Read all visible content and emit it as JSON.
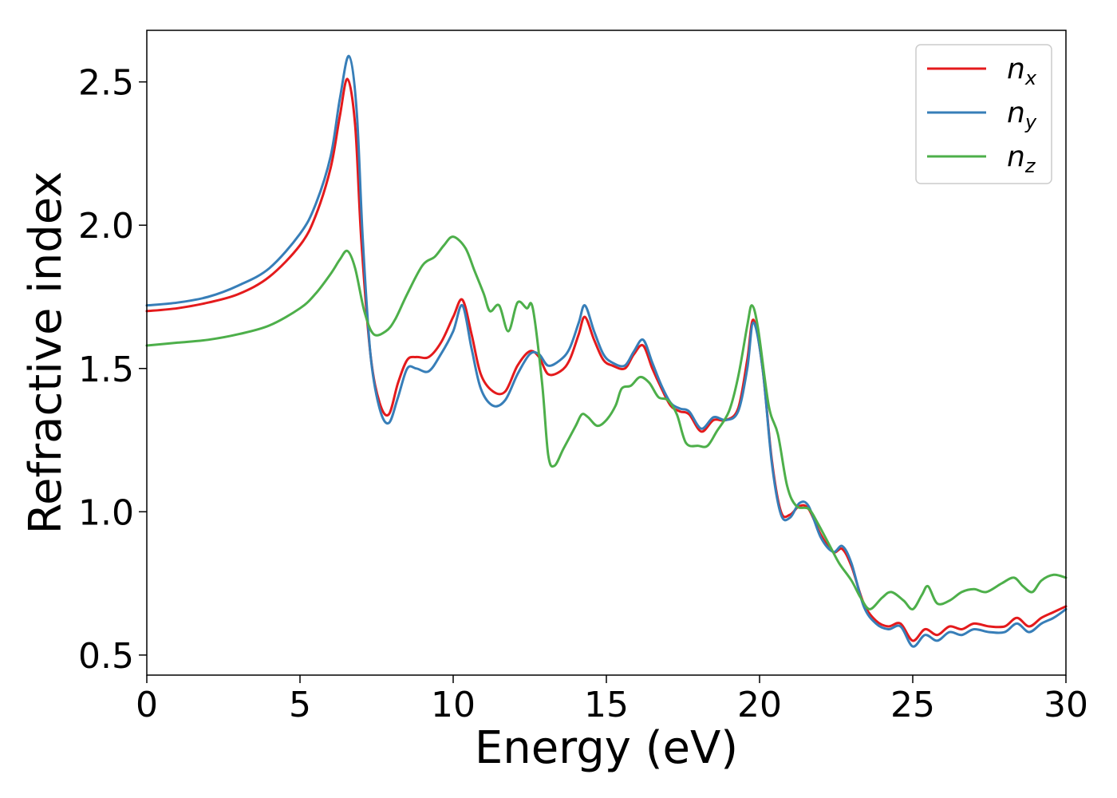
{
  "chart_data": {
    "type": "line",
    "title": "",
    "xlabel": "Energy (eV)",
    "ylabel": "Refractive index",
    "xlim": [
      0,
      30
    ],
    "ylim": [
      0.43,
      2.68
    ],
    "xticks": [
      0,
      5,
      10,
      15,
      20,
      25,
      30
    ],
    "xtick_labels": [
      "0",
      "5",
      "10",
      "15",
      "20",
      "25",
      "30"
    ],
    "yticks": [
      0.5,
      1.0,
      1.5,
      2.0,
      2.5
    ],
    "ytick_labels": [
      "0.5",
      "1.0",
      "1.5",
      "2.0",
      "2.5"
    ],
    "grid": false,
    "legend_position": "top-right",
    "series": [
      {
        "name": "n_x",
        "label_base": "n",
        "label_sub": "x",
        "color": "#e41a1c",
        "points": [
          [
            0,
            1.7
          ],
          [
            1,
            1.71
          ],
          [
            2,
            1.73
          ],
          [
            3,
            1.76
          ],
          [
            4,
            1.82
          ],
          [
            5,
            1.93
          ],
          [
            5.5,
            2.03
          ],
          [
            6.0,
            2.2
          ],
          [
            6.3,
            2.38
          ],
          [
            6.55,
            2.51
          ],
          [
            6.8,
            2.35
          ],
          [
            7.0,
            1.95
          ],
          [
            7.3,
            1.55
          ],
          [
            7.6,
            1.38
          ],
          [
            7.9,
            1.34
          ],
          [
            8.2,
            1.45
          ],
          [
            8.5,
            1.53
          ],
          [
            8.8,
            1.54
          ],
          [
            9.2,
            1.54
          ],
          [
            9.6,
            1.59
          ],
          [
            10.0,
            1.68
          ],
          [
            10.3,
            1.74
          ],
          [
            10.6,
            1.62
          ],
          [
            10.9,
            1.48
          ],
          [
            11.3,
            1.42
          ],
          [
            11.7,
            1.42
          ],
          [
            12.1,
            1.51
          ],
          [
            12.5,
            1.56
          ],
          [
            12.8,
            1.54
          ],
          [
            13.1,
            1.48
          ],
          [
            13.5,
            1.49
          ],
          [
            13.8,
            1.53
          ],
          [
            14.1,
            1.62
          ],
          [
            14.3,
            1.68
          ],
          [
            14.6,
            1.6
          ],
          [
            14.9,
            1.53
          ],
          [
            15.2,
            1.51
          ],
          [
            15.6,
            1.5
          ],
          [
            15.9,
            1.55
          ],
          [
            16.2,
            1.58
          ],
          [
            16.5,
            1.5
          ],
          [
            16.8,
            1.43
          ],
          [
            17.1,
            1.37
          ],
          [
            17.4,
            1.35
          ],
          [
            17.7,
            1.34
          ],
          [
            18.1,
            1.28
          ],
          [
            18.5,
            1.32
          ],
          [
            18.9,
            1.32
          ],
          [
            19.3,
            1.36
          ],
          [
            19.6,
            1.53
          ],
          [
            19.8,
            1.67
          ],
          [
            20.1,
            1.5
          ],
          [
            20.4,
            1.18
          ],
          [
            20.7,
            1.0
          ],
          [
            21.0,
            0.99
          ],
          [
            21.3,
            1.02
          ],
          [
            21.6,
            1.01
          ],
          [
            22.0,
            0.92
          ],
          [
            22.4,
            0.86
          ],
          [
            22.7,
            0.87
          ],
          [
            23.0,
            0.81
          ],
          [
            23.4,
            0.68
          ],
          [
            23.8,
            0.62
          ],
          [
            24.2,
            0.6
          ],
          [
            24.6,
            0.61
          ],
          [
            25.0,
            0.55
          ],
          [
            25.4,
            0.59
          ],
          [
            25.8,
            0.57
          ],
          [
            26.2,
            0.6
          ],
          [
            26.6,
            0.59
          ],
          [
            27.0,
            0.61
          ],
          [
            27.5,
            0.6
          ],
          [
            28.0,
            0.6
          ],
          [
            28.4,
            0.63
          ],
          [
            28.8,
            0.6
          ],
          [
            29.2,
            0.63
          ],
          [
            29.6,
            0.65
          ],
          [
            30,
            0.67
          ]
        ]
      },
      {
        "name": "n_y",
        "label_base": "n",
        "label_sub": "y",
        "color": "#377eb8",
        "points": [
          [
            0,
            1.72
          ],
          [
            1,
            1.73
          ],
          [
            2,
            1.75
          ],
          [
            3,
            1.79
          ],
          [
            4,
            1.85
          ],
          [
            5,
            1.97
          ],
          [
            5.5,
            2.07
          ],
          [
            6.0,
            2.24
          ],
          [
            6.3,
            2.44
          ],
          [
            6.6,
            2.59
          ],
          [
            6.85,
            2.4
          ],
          [
            7.05,
            1.95
          ],
          [
            7.3,
            1.55
          ],
          [
            7.6,
            1.36
          ],
          [
            7.9,
            1.31
          ],
          [
            8.2,
            1.4
          ],
          [
            8.5,
            1.5
          ],
          [
            8.8,
            1.5
          ],
          [
            9.2,
            1.49
          ],
          [
            9.6,
            1.55
          ],
          [
            10.0,
            1.63
          ],
          [
            10.3,
            1.72
          ],
          [
            10.6,
            1.57
          ],
          [
            10.9,
            1.43
          ],
          [
            11.3,
            1.37
          ],
          [
            11.7,
            1.39
          ],
          [
            12.1,
            1.48
          ],
          [
            12.5,
            1.55
          ],
          [
            12.8,
            1.55
          ],
          [
            13.1,
            1.51
          ],
          [
            13.5,
            1.53
          ],
          [
            13.8,
            1.57
          ],
          [
            14.1,
            1.66
          ],
          [
            14.3,
            1.72
          ],
          [
            14.6,
            1.63
          ],
          [
            14.9,
            1.55
          ],
          [
            15.2,
            1.52
          ],
          [
            15.6,
            1.51
          ],
          [
            15.9,
            1.56
          ],
          [
            16.2,
            1.6
          ],
          [
            16.5,
            1.52
          ],
          [
            16.8,
            1.44
          ],
          [
            17.1,
            1.38
          ],
          [
            17.4,
            1.36
          ],
          [
            17.7,
            1.35
          ],
          [
            18.1,
            1.29
          ],
          [
            18.5,
            1.33
          ],
          [
            18.9,
            1.32
          ],
          [
            19.3,
            1.35
          ],
          [
            19.6,
            1.5
          ],
          [
            19.8,
            1.66
          ],
          [
            20.1,
            1.5
          ],
          [
            20.4,
            1.17
          ],
          [
            20.7,
            0.99
          ],
          [
            21.0,
            0.98
          ],
          [
            21.3,
            1.03
          ],
          [
            21.6,
            1.02
          ],
          [
            22.0,
            0.91
          ],
          [
            22.4,
            0.86
          ],
          [
            22.7,
            0.88
          ],
          [
            23.0,
            0.82
          ],
          [
            23.4,
            0.67
          ],
          [
            23.8,
            0.61
          ],
          [
            24.2,
            0.59
          ],
          [
            24.6,
            0.6
          ],
          [
            25.0,
            0.53
          ],
          [
            25.4,
            0.57
          ],
          [
            25.8,
            0.55
          ],
          [
            26.2,
            0.58
          ],
          [
            26.6,
            0.57
          ],
          [
            27.0,
            0.59
          ],
          [
            27.5,
            0.58
          ],
          [
            28.0,
            0.58
          ],
          [
            28.4,
            0.61
          ],
          [
            28.8,
            0.58
          ],
          [
            29.2,
            0.61
          ],
          [
            29.6,
            0.63
          ],
          [
            30,
            0.66
          ]
        ]
      },
      {
        "name": "n_z",
        "label_base": "n",
        "label_sub": "z",
        "color": "#4daf4a",
        "points": [
          [
            0,
            1.58
          ],
          [
            1,
            1.59
          ],
          [
            2,
            1.6
          ],
          [
            3,
            1.62
          ],
          [
            4,
            1.65
          ],
          [
            5,
            1.71
          ],
          [
            5.5,
            1.76
          ],
          [
            6.0,
            1.83
          ],
          [
            6.3,
            1.88
          ],
          [
            6.55,
            1.91
          ],
          [
            6.8,
            1.85
          ],
          [
            7.1,
            1.7
          ],
          [
            7.4,
            1.62
          ],
          [
            7.8,
            1.63
          ],
          [
            8.1,
            1.67
          ],
          [
            8.5,
            1.76
          ],
          [
            9.0,
            1.86
          ],
          [
            9.4,
            1.89
          ],
          [
            9.7,
            1.93
          ],
          [
            10.0,
            1.96
          ],
          [
            10.4,
            1.92
          ],
          [
            10.7,
            1.84
          ],
          [
            11.0,
            1.76
          ],
          [
            11.2,
            1.7
          ],
          [
            11.5,
            1.72
          ],
          [
            11.8,
            1.63
          ],
          [
            12.1,
            1.73
          ],
          [
            12.4,
            1.71
          ],
          [
            12.6,
            1.71
          ],
          [
            12.9,
            1.45
          ],
          [
            13.1,
            1.2
          ],
          [
            13.3,
            1.16
          ],
          [
            13.6,
            1.22
          ],
          [
            14.0,
            1.3
          ],
          [
            14.2,
            1.34
          ],
          [
            14.4,
            1.33
          ],
          [
            14.7,
            1.3
          ],
          [
            15.0,
            1.32
          ],
          [
            15.3,
            1.37
          ],
          [
            15.5,
            1.43
          ],
          [
            15.8,
            1.44
          ],
          [
            16.1,
            1.47
          ],
          [
            16.4,
            1.45
          ],
          [
            16.7,
            1.4
          ],
          [
            17.0,
            1.39
          ],
          [
            17.3,
            1.34
          ],
          [
            17.6,
            1.24
          ],
          [
            18.0,
            1.23
          ],
          [
            18.3,
            1.23
          ],
          [
            18.6,
            1.28
          ],
          [
            19.0,
            1.35
          ],
          [
            19.3,
            1.47
          ],
          [
            19.6,
            1.65
          ],
          [
            19.75,
            1.72
          ],
          [
            19.95,
            1.64
          ],
          [
            20.3,
            1.37
          ],
          [
            20.6,
            1.27
          ],
          [
            20.9,
            1.09
          ],
          [
            21.2,
            1.02
          ],
          [
            21.6,
            1.01
          ],
          [
            21.9,
            0.96
          ],
          [
            22.3,
            0.88
          ],
          [
            22.6,
            0.82
          ],
          [
            23.0,
            0.76
          ],
          [
            23.3,
            0.7
          ],
          [
            23.6,
            0.66
          ],
          [
            24.0,
            0.7
          ],
          [
            24.3,
            0.72
          ],
          [
            24.7,
            0.69
          ],
          [
            25.0,
            0.66
          ],
          [
            25.3,
            0.71
          ],
          [
            25.5,
            0.74
          ],
          [
            25.8,
            0.68
          ],
          [
            26.2,
            0.69
          ],
          [
            26.6,
            0.72
          ],
          [
            27.0,
            0.73
          ],
          [
            27.4,
            0.72
          ],
          [
            27.9,
            0.75
          ],
          [
            28.3,
            0.77
          ],
          [
            28.6,
            0.74
          ],
          [
            28.9,
            0.72
          ],
          [
            29.2,
            0.76
          ],
          [
            29.6,
            0.78
          ],
          [
            30,
            0.77
          ]
        ]
      }
    ]
  }
}
